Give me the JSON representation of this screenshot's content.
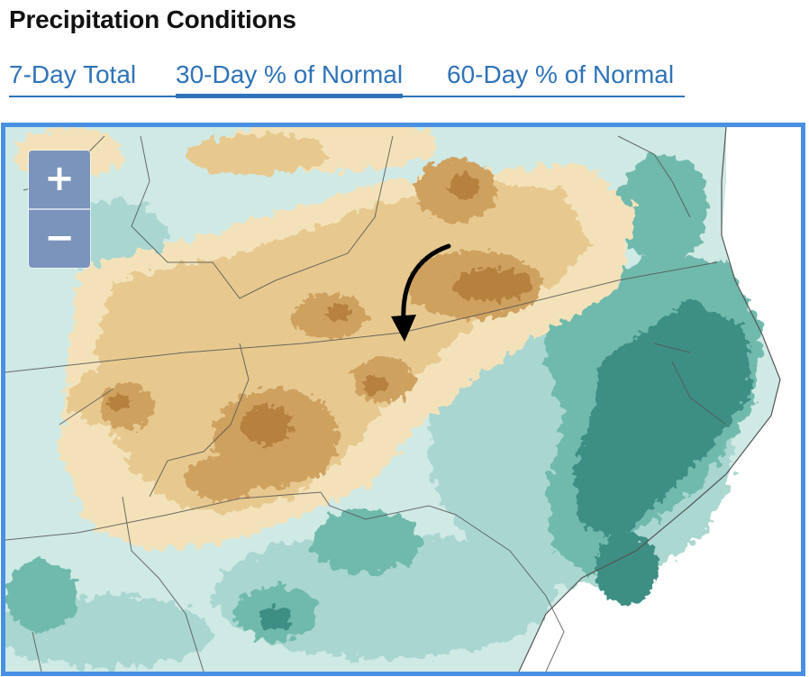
{
  "header": {
    "title": "Precipitation Conditions"
  },
  "tabs": [
    {
      "label": "7-Day Total",
      "active": false
    },
    {
      "label": "30-Day % of Normal",
      "active": true
    },
    {
      "label": "60-Day % of Normal",
      "active": false
    }
  ],
  "map": {
    "zoom_in_label": "+",
    "zoom_out_label": "−",
    "palette": {
      "dark_brown": "#b5813d",
      "brown": "#cfa15f",
      "tan": "#e7c98f",
      "light_tan": "#f3e2b9",
      "pale_teal": "#cfe9e5",
      "light_teal": "#a7d6cf",
      "teal": "#6fb9ad",
      "dark_teal": "#3e8f83",
      "frame": "#4a90e2",
      "zoom_button": "#7b94bb",
      "link": "#2f73b8"
    },
    "annotation": "curved-black-arrow"
  }
}
